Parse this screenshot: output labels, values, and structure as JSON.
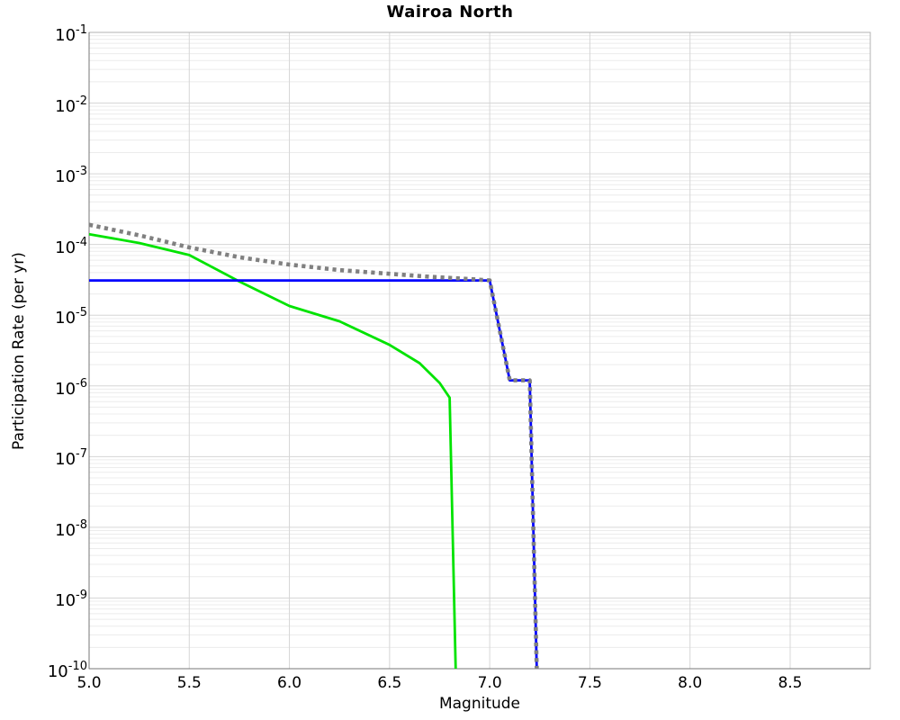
{
  "chart_data": {
    "type": "line",
    "title": "Wairoa North",
    "xlabel": "Magnitude",
    "ylabel": "Participation Rate (per yr)",
    "xlim": [
      5.0,
      8.9
    ],
    "ylim": [
      1e-10,
      0.1
    ],
    "x_scale": "linear",
    "y_scale": "log",
    "x_ticks": [
      5.0,
      5.5,
      6.0,
      6.5,
      7.0,
      7.5,
      8.0,
      8.5
    ],
    "x_tick_labels": [
      "5.0",
      "5.5",
      "6.0",
      "6.5",
      "7.0",
      "7.5",
      "8.0",
      "8.5"
    ],
    "y_tick_exponents": [
      -1,
      -2,
      -3,
      -4,
      -5,
      -6,
      -7,
      -8,
      -9,
      -10
    ],
    "grid": "major-and-minor-horizontal, major-vertical",
    "legend": "none",
    "series": [
      {
        "name": "gray-dotted-curve",
        "style": "dotted",
        "color": "#808080",
        "width": 4.6,
        "points": [
          [
            5.0,
            0.00019
          ],
          [
            5.25,
            0.000135
          ],
          [
            5.5,
            9.1e-05
          ],
          [
            5.75,
            6.6e-05
          ],
          [
            6.0,
            5.2e-05
          ],
          [
            6.25,
            4.35e-05
          ],
          [
            6.5,
            3.85e-05
          ],
          [
            6.7,
            3.5e-05
          ],
          [
            6.9,
            3.25e-05
          ],
          [
            7.0,
            3.1e-05
          ],
          [
            7.1,
            1.2e-06
          ],
          [
            7.2,
            1.2e-06
          ],
          [
            7.235,
            1e-10
          ]
        ]
      },
      {
        "name": "green-solid-curve",
        "style": "solid",
        "color": "#00e300",
        "width": 2.8,
        "points": [
          [
            5.0,
            0.00014
          ],
          [
            5.25,
            0.000105
          ],
          [
            5.5,
            7.1e-05
          ],
          [
            5.75,
            3e-05
          ],
          [
            6.0,
            1.35e-05
          ],
          [
            6.25,
            8.2e-06
          ],
          [
            6.5,
            3.8e-06
          ],
          [
            6.65,
            2.1e-06
          ],
          [
            6.75,
            1.1e-06
          ],
          [
            6.8,
            6.8e-07
          ],
          [
            6.83,
            1e-10
          ]
        ]
      },
      {
        "name": "blue-solid-curve",
        "style": "solid",
        "color": "#0000ff",
        "width": 2.8,
        "points": [
          [
            5.0,
            3.1e-05
          ],
          [
            7.0,
            3.1e-05
          ],
          [
            7.1,
            1.2e-06
          ],
          [
            7.2,
            1.2e-06
          ],
          [
            7.235,
            1e-10
          ]
        ]
      }
    ],
    "colors": {
      "background": "#ffffff",
      "plot_border": "#b3b3b3",
      "axis_line": "#777777",
      "grid_major": "#d6d6d6",
      "grid_minor": "#ececec",
      "text": "#000000"
    }
  }
}
